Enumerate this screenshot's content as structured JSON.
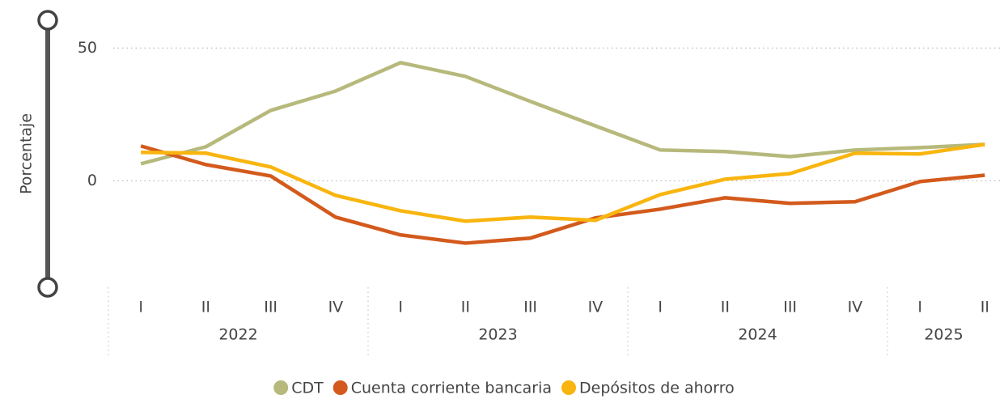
{
  "chart_data": {
    "type": "line",
    "y_label": "Porcentaje",
    "groups": [
      {
        "name": "2022",
        "categories": [
          "I",
          "II",
          "III",
          "IV"
        ]
      },
      {
        "name": "2023",
        "categories": [
          "I",
          "II",
          "III",
          "IV"
        ]
      },
      {
        "name": "2024",
        "categories": [
          "I",
          "II",
          "III",
          "IV"
        ]
      },
      {
        "name": "2025",
        "categories": [
          "I",
          "II"
        ]
      }
    ],
    "series": [
      {
        "name": "CDT",
        "color": "#b6b97b",
        "values": [
          6.4,
          12.8,
          26.5,
          33.8,
          44.5,
          39.3,
          29.9,
          20.7,
          11.6,
          11.0,
          9.1,
          11.6,
          12.5,
          13.7
        ]
      },
      {
        "name": "Cuenta corriente bancaria",
        "color": "#d35a1c",
        "values": [
          13.1,
          6.1,
          1.8,
          -13.7,
          -20.4,
          -23.5,
          -21.6,
          -14.0,
          -10.7,
          -6.4,
          -8.5,
          -7.9,
          -0.3,
          2.1
        ]
      },
      {
        "name": "Depósitos de ahorro",
        "color": "#f9b50f",
        "values": [
          10.7,
          10.4,
          5.2,
          -5.5,
          -11.3,
          -15.2,
          -13.7,
          -14.9,
          -5.2,
          0.6,
          2.7,
          10.4,
          10.1,
          13.7
        ]
      }
    ],
    "ylim": [
      -38,
      62
    ],
    "yticks": [
      0,
      50
    ],
    "grid": true,
    "legend": "bottom"
  }
}
